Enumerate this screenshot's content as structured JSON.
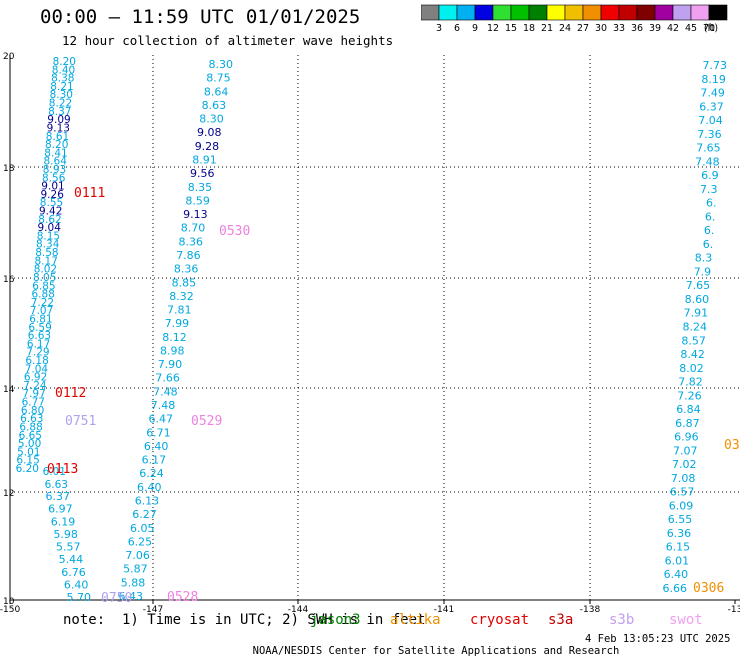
{
  "header": {
    "title": "00:00 – 11:59 UTC 01/01/2025",
    "subtitle": "12 hour collection of altimeter wave heights"
  },
  "colorbar": {
    "ticks": [
      "3",
      "6",
      "9",
      "12",
      "15",
      "18",
      "21",
      "24",
      "27",
      "30",
      "33",
      "36",
      "39",
      "42",
      "45",
      "70"
    ],
    "unit": "(ft)",
    "colors": [
      "#808080",
      "#00f0f0",
      "#00b0f0",
      "#0000e0",
      "#30e030",
      "#00c000",
      "#008000",
      "#ffff00",
      "#f0c000",
      "#f09000",
      "#f00000",
      "#c00000",
      "#800000",
      "#a000a0",
      "#c0a0f0",
      "#f0a0f0",
      "#000000"
    ]
  },
  "axes": {
    "x_ticks": [
      "-150",
      "-147",
      "-144",
      "-141",
      "-138",
      "-13"
    ],
    "y_ticks": [
      "20",
      "18",
      "16",
      "14",
      "12",
      "10"
    ]
  },
  "colors": {
    "cyan": "#00a8e0",
    "navy": "#000090",
    "red": "#e00000",
    "pink": "#f080e0",
    "lavender": "#b0a0f0",
    "orange": "#f09000",
    "green": "#40c040"
  },
  "passes": [
    {
      "label": "0111",
      "color": "#e00000"
    },
    {
      "label": "0530",
      "color": "#f080e0"
    },
    {
      "label": "0112",
      "color": "#e00000"
    },
    {
      "label": "0751",
      "color": "#b0a0f0"
    },
    {
      "label": "0529",
      "color": "#f080e0"
    },
    {
      "label": "0113",
      "color": "#e00000"
    },
    {
      "label": "0750",
      "color": "#b0a0f0"
    },
    {
      "label": "0528",
      "color": "#f080e0"
    },
    {
      "label": "0306",
      "color": "#f09000"
    },
    {
      "label": "03",
      "color": "#f09000"
    }
  ],
  "track_a": [
    "8.30",
    "8.75",
    "8.64",
    "8.63",
    "8.30",
    "9.08",
    "9.28",
    "8.91",
    "9.56",
    "8.35",
    "8.59",
    "9.13",
    "8.70",
    "8.36",
    "7.86",
    "8.36",
    "8.85",
    "8.32",
    "7.81",
    "7.99",
    "8.12",
    "8.98",
    "7.90",
    "7.66",
    "7.48",
    "7.48",
    "6.47",
    "6.71",
    "6.40",
    "6.17",
    "6.24",
    "6.40",
    "6.13",
    "6.27",
    "6.05",
    "6.25",
    "7.06",
    "5.87",
    "5.88",
    "6.43"
  ],
  "track_b": [
    "6.37",
    "6.97",
    "6.19",
    "5.98",
    "5.57",
    "5.44",
    "6.76",
    "6.40",
    "5.70"
  ],
  "track_c": [
    "7.73",
    "8.19",
    "7.49",
    "6.37",
    "7.04",
    "7.36",
    "7.65",
    "7.48",
    "6.9",
    "7.3",
    "6.",
    "6.",
    "6.",
    "6.",
    "8.3",
    "7.9",
    "7.65",
    "8.60",
    "7.91",
    "8.24",
    "8.57",
    "8.42",
    "8.02",
    "7.82",
    "7.26",
    "6.84",
    "6.87",
    "6.96",
    "7.07",
    "7.02",
    "7.08",
    "6.57",
    "6.09",
    "6.55",
    "6.36",
    "6.15",
    "6.01",
    "6.40",
    "6.66"
  ],
  "track_d": [
    "8.20",
    "8.40",
    "8.38",
    "8.21",
    "8.30",
    "8.22",
    "8.37",
    "9.09",
    "9.13",
    "8.61",
    "8.20",
    "8.41",
    "8.64",
    "8.93",
    "8.56",
    "9.01",
    "9.26",
    "8.55",
    "9.42",
    "8.62",
    "9.04",
    "8.15",
    "8.34",
    "8.58",
    "8.17",
    "8.02",
    "8.05",
    "6.85",
    "6.88",
    "7.22",
    "7.07",
    "6.81",
    "6.59",
    "6.63",
    "6.17",
    "7.29",
    "6.18",
    "7.04",
    "6.92",
    "7.24",
    "7.97",
    "6.77",
    "6.80",
    "6.63",
    "6.88",
    "6.65",
    "5.00",
    "5.01",
    "6.15",
    "6.20"
  ],
  "track_d_tail": [
    "6.01",
    "6.63"
  ],
  "note": {
    "text": "note:  1) Time is in UTC; 2) SWH is in feet",
    "sats": [
      {
        "label": "jason3",
        "color": "#008000"
      },
      {
        "label": "altika",
        "color": "#f09000"
      },
      {
        "label": "cryosat",
        "color": "#e00000"
      },
      {
        "label": "s3a",
        "color": "#c00000"
      },
      {
        "label": "s3b",
        "color": "#c0a0f0"
      },
      {
        "label": "swot",
        "color": "#f0a0f0"
      }
    ]
  },
  "footer": {
    "credit": "NOAA/NESDIS Center for Satellite Applications and Research",
    "timestamp": "4 Feb 13:05:23 UTC 2025"
  }
}
